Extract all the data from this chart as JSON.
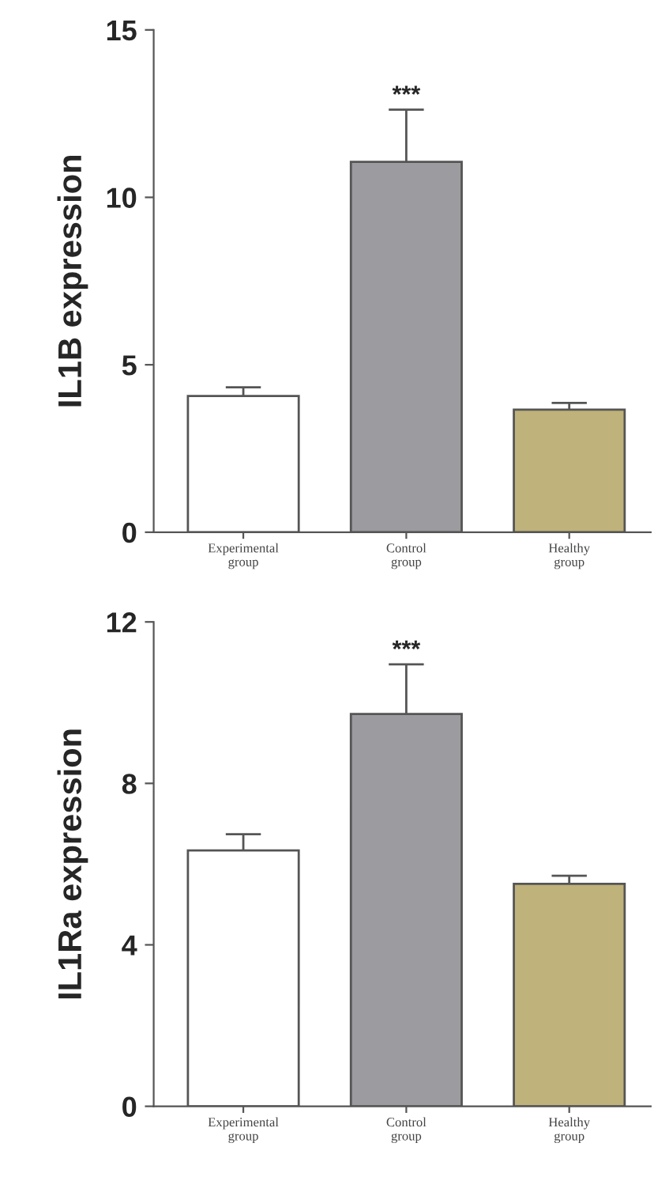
{
  "chart_data": [
    {
      "type": "bar",
      "ylabel": "IL1B expression",
      "categories": [
        "Experimental group",
        "Control group",
        "Healthy group"
      ],
      "values": [
        4.07,
        11.06,
        3.66
      ],
      "errors": [
        0.26,
        1.56,
        0.2
      ],
      "colors": [
        "#ffffff",
        "#9b9ba0",
        "#bfb27a"
      ],
      "ylim": [
        0,
        15
      ],
      "yticks": [
        0,
        5,
        10,
        15
      ],
      "annotations": [
        {
          "text": "***",
          "x": "Control group",
          "y": 12.62
        }
      ]
    },
    {
      "type": "bar",
      "ylabel": "IL1Ra expression",
      "categories": [
        "Experimental group",
        "Control group",
        "Healthy group"
      ],
      "values": [
        6.34,
        9.72,
        5.51
      ],
      "errors": [
        0.4,
        1.23,
        0.2
      ],
      "colors": [
        "#ffffff",
        "#9b9ba0",
        "#bfb27a"
      ],
      "ylim": [
        0,
        12
      ],
      "yticks": [
        0,
        4,
        8,
        12
      ],
      "annotations": [
        {
          "text": "***",
          "x": "Control group",
          "y": 10.95
        }
      ]
    }
  ]
}
